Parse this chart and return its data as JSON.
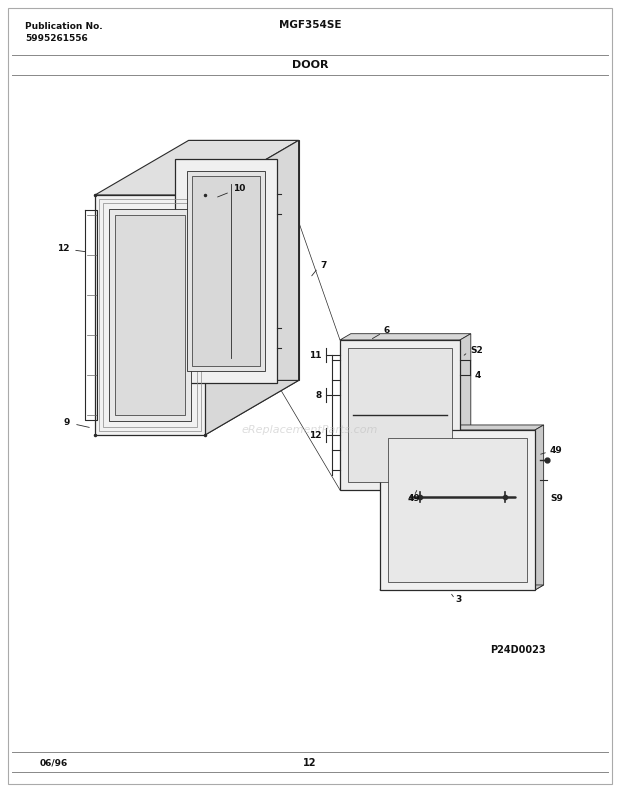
{
  "title_model": "MGF354SE",
  "title_section": "DOOR",
  "pub_no_label": "Publication No.",
  "pub_no_value": "5995261556",
  "page_number": "12",
  "date_code": "06/96",
  "diagram_code": "P24D0023",
  "watermark": "eReplacementParts.com",
  "bg_color": "#ffffff",
  "line_color": "#2a2a2a",
  "text_color": "#111111",
  "face_color_white": "#f5f5f5",
  "face_color_top": "#e0e0e0",
  "face_color_side": "#d0d0d0",
  "face_color_inner": "#e8e8e8",
  "face_color_glass": "#eeeeee"
}
